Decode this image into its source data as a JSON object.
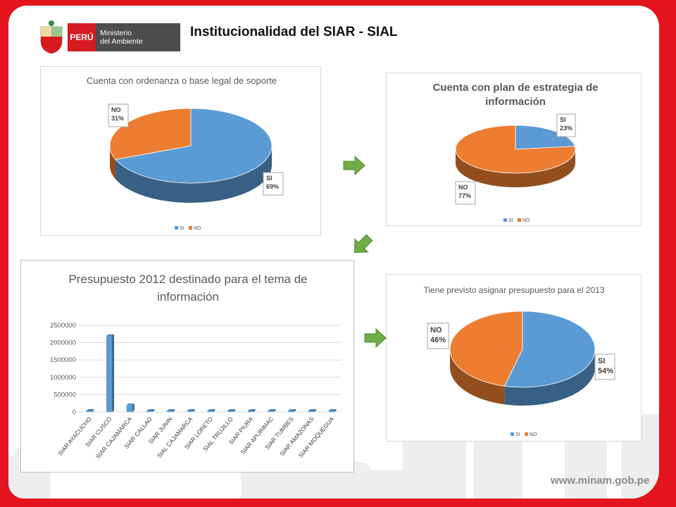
{
  "header": {
    "title": "Institucionalidad del SIAR - SIAL",
    "logo_country": "PERÚ",
    "logo_ministry_line1": "Ministerio",
    "logo_ministry_line2": "del Ambiente"
  },
  "footer": {
    "website": "www.minam.gob.pe"
  },
  "colors": {
    "si": "#5b9bd5",
    "no": "#ed7d31",
    "frame": "#e3141e",
    "arrow": "#70ad47"
  },
  "chart_data": [
    {
      "type": "pie",
      "title": "Cuenta con ordenanza  o base legal de soporte",
      "categories": [
        "SI",
        "NO"
      ],
      "values": [
        69,
        31
      ],
      "data_labels": [
        "SI\n69%",
        "NO\n31%"
      ],
      "legend": [
        "SI",
        "NO"
      ],
      "legend_position": "bottom"
    },
    {
      "type": "pie",
      "title": "Cuenta con plan de estrategia de información",
      "categories": [
        "SI",
        "NO"
      ],
      "values": [
        23,
        77
      ],
      "data_labels": [
        "SI\n23%",
        "NO\n77%"
      ],
      "legend": [
        "SI",
        "NO"
      ],
      "legend_position": "bottom"
    },
    {
      "type": "bar",
      "title": "Presupuesto 2012 destinado para el tema de información",
      "categories": [
        "SIAR AYACUCHO",
        "SIAR CUSCO",
        "SIAR CAJAMARCA",
        "SIAR CALLAO",
        "SIAR JUNIN",
        "SIAL CAJAMARCA",
        "SIAR LORETO",
        "SIAL TRUJILLO",
        "SIAR PIURA",
        "SIAR APURIMAC",
        "SIAR TUMBES",
        "SIAR AMAZONAS",
        "SIAR MOQUEGUA"
      ],
      "values": [
        0,
        2200000,
        200000,
        0,
        0,
        0,
        0,
        0,
        0,
        0,
        0,
        0,
        0
      ],
      "yticks": [
        "0",
        "500000",
        "1000000",
        "1500000",
        "2000000",
        "2500000"
      ],
      "ylim": [
        0,
        2500000
      ],
      "grid": true
    },
    {
      "type": "pie",
      "title": "Tiene previsto asignar presupuesto para el 2013",
      "categories": [
        "SI",
        "NO"
      ],
      "values": [
        54,
        46
      ],
      "data_labels": [
        "SI\n54%",
        "NO\n46%"
      ],
      "legend": [
        "SI",
        "NO"
      ],
      "legend_position": "bottom"
    }
  ]
}
